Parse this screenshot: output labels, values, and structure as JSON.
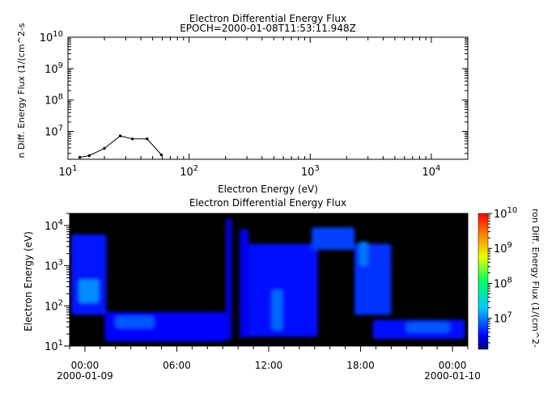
{
  "chart_data": [
    {
      "type": "line",
      "title": "Electron Differential Energy Flux",
      "subtitle": "EPOCH=2000-01-08T11:53:11.948Z",
      "xlabel": "Electron Energy (eV)",
      "ylabel": "n Diff. Energy Flux (1/(cm^2-s",
      "xscale": "log",
      "yscale": "log",
      "xlim": [
        10,
        20000
      ],
      "ylim": [
        1300000,
        10000000000
      ],
      "x_tick_values": [
        10,
        100,
        1000,
        10000
      ],
      "x_tick_labels": [
        {
          "base": "10",
          "exp": "1"
        },
        {
          "base": "10",
          "exp": "2"
        },
        {
          "base": "10",
          "exp": "3"
        },
        {
          "base": "10",
          "exp": "4"
        }
      ],
      "y_tick_values": [
        10000000,
        100000000,
        1000000000,
        10000000000
      ],
      "y_tick_labels": [
        {
          "base": "10",
          "exp": "7"
        },
        {
          "base": "10",
          "exp": "8"
        },
        {
          "base": "10",
          "exp": "9"
        },
        {
          "base": "10",
          "exp": "10"
        }
      ],
      "grid": false,
      "series": [
        {
          "color": "#000000",
          "marker": "dot",
          "x": [
            12.5,
            15,
            20,
            27,
            34,
            45,
            59
          ],
          "y": [
            1500000,
            1700000,
            2900000,
            7200000,
            5800000,
            5800000,
            1800000
          ]
        }
      ]
    },
    {
      "type": "heatmap",
      "title": "Electron Differential Energy Flux",
      "ylabel": "Electron Energy (eV)",
      "colorbar_label": "ron Diff. Energy Flux (1/(cm^2-",
      "yscale": "log",
      "ylim": [
        10,
        20000
      ],
      "y_tick_values": [
        10,
        100,
        1000,
        10000
      ],
      "y_tick_labels": [
        {
          "base": "10",
          "exp": "1"
        },
        {
          "base": "10",
          "exp": "2"
        },
        {
          "base": "10",
          "exp": "3"
        },
        {
          "base": "10",
          "exp": "4"
        }
      ],
      "x_unit": "hours since 2000-01-09 00:00",
      "xlim": [
        -1.0,
        25.0
      ],
      "x_ticks": [
        {
          "value": 0,
          "label": "00:00",
          "date": "2000-01-09"
        },
        {
          "value": 6,
          "label": "06:00",
          "date": ""
        },
        {
          "value": 12,
          "label": "12:00",
          "date": ""
        },
        {
          "value": 18,
          "label": "18:00",
          "date": ""
        },
        {
          "value": 24,
          "label": "00:00",
          "date": "2000-01-10"
        }
      ],
      "colorbar_range": [
        1300000,
        10000000000
      ],
      "colorbar_scale": "log",
      "colorbar_colormap": "rainbow",
      "colorbar_tick_values": [
        10000000,
        100000000,
        1000000000,
        10000000000
      ],
      "colorbar_tick_labels": [
        {
          "base": "10",
          "exp": "7"
        },
        {
          "base": "10",
          "exp": "8"
        },
        {
          "base": "10",
          "exp": "9"
        },
        {
          "base": "10",
          "exp": "10"
        }
      ],
      "background_color": "#000000",
      "regions": [
        {
          "t0": -0.9,
          "t1": 1.4,
          "e0": 60,
          "e1": 6000,
          "log_flux": 6.6
        },
        {
          "t0": -0.4,
          "t1": 0.9,
          "e0": 120,
          "e1": 450,
          "log_flux": 7.05
        },
        {
          "t0": 1.3,
          "t1": 9.2,
          "e0": 13,
          "e1": 70,
          "log_flux": 6.5
        },
        {
          "t0": 2.0,
          "t1": 4.5,
          "e0": 28,
          "e1": 55,
          "log_flux": 6.85
        },
        {
          "t0": 9.2,
          "t1": 9.6,
          "e0": 14,
          "e1": 15000,
          "log_flux": 6.4
        },
        {
          "t0": 10.1,
          "t1": 10.7,
          "e0": 16,
          "e1": 8000,
          "log_flux": 6.45
        },
        {
          "t0": 10.7,
          "t1": 15.2,
          "e0": 17,
          "e1": 3500,
          "log_flux": 6.55
        },
        {
          "t0": 12.2,
          "t1": 12.9,
          "e0": 25,
          "e1": 250,
          "log_flux": 6.9
        },
        {
          "t0": 14.8,
          "t1": 17.6,
          "e0": 2500,
          "e1": 9000,
          "log_flux": 6.75
        },
        {
          "t0": 17.6,
          "t1": 20.0,
          "e0": 60,
          "e1": 3500,
          "log_flux": 6.7
        },
        {
          "t0": 17.9,
          "t1": 18.5,
          "e0": 1000,
          "e1": 4000,
          "log_flux": 6.95
        },
        {
          "t0": 18.8,
          "t1": 24.8,
          "e0": 15,
          "e1": 45,
          "log_flux": 6.55
        },
        {
          "t0": 21.0,
          "t1": 23.8,
          "e0": 22,
          "e1": 40,
          "log_flux": 6.85
        }
      ]
    }
  ]
}
